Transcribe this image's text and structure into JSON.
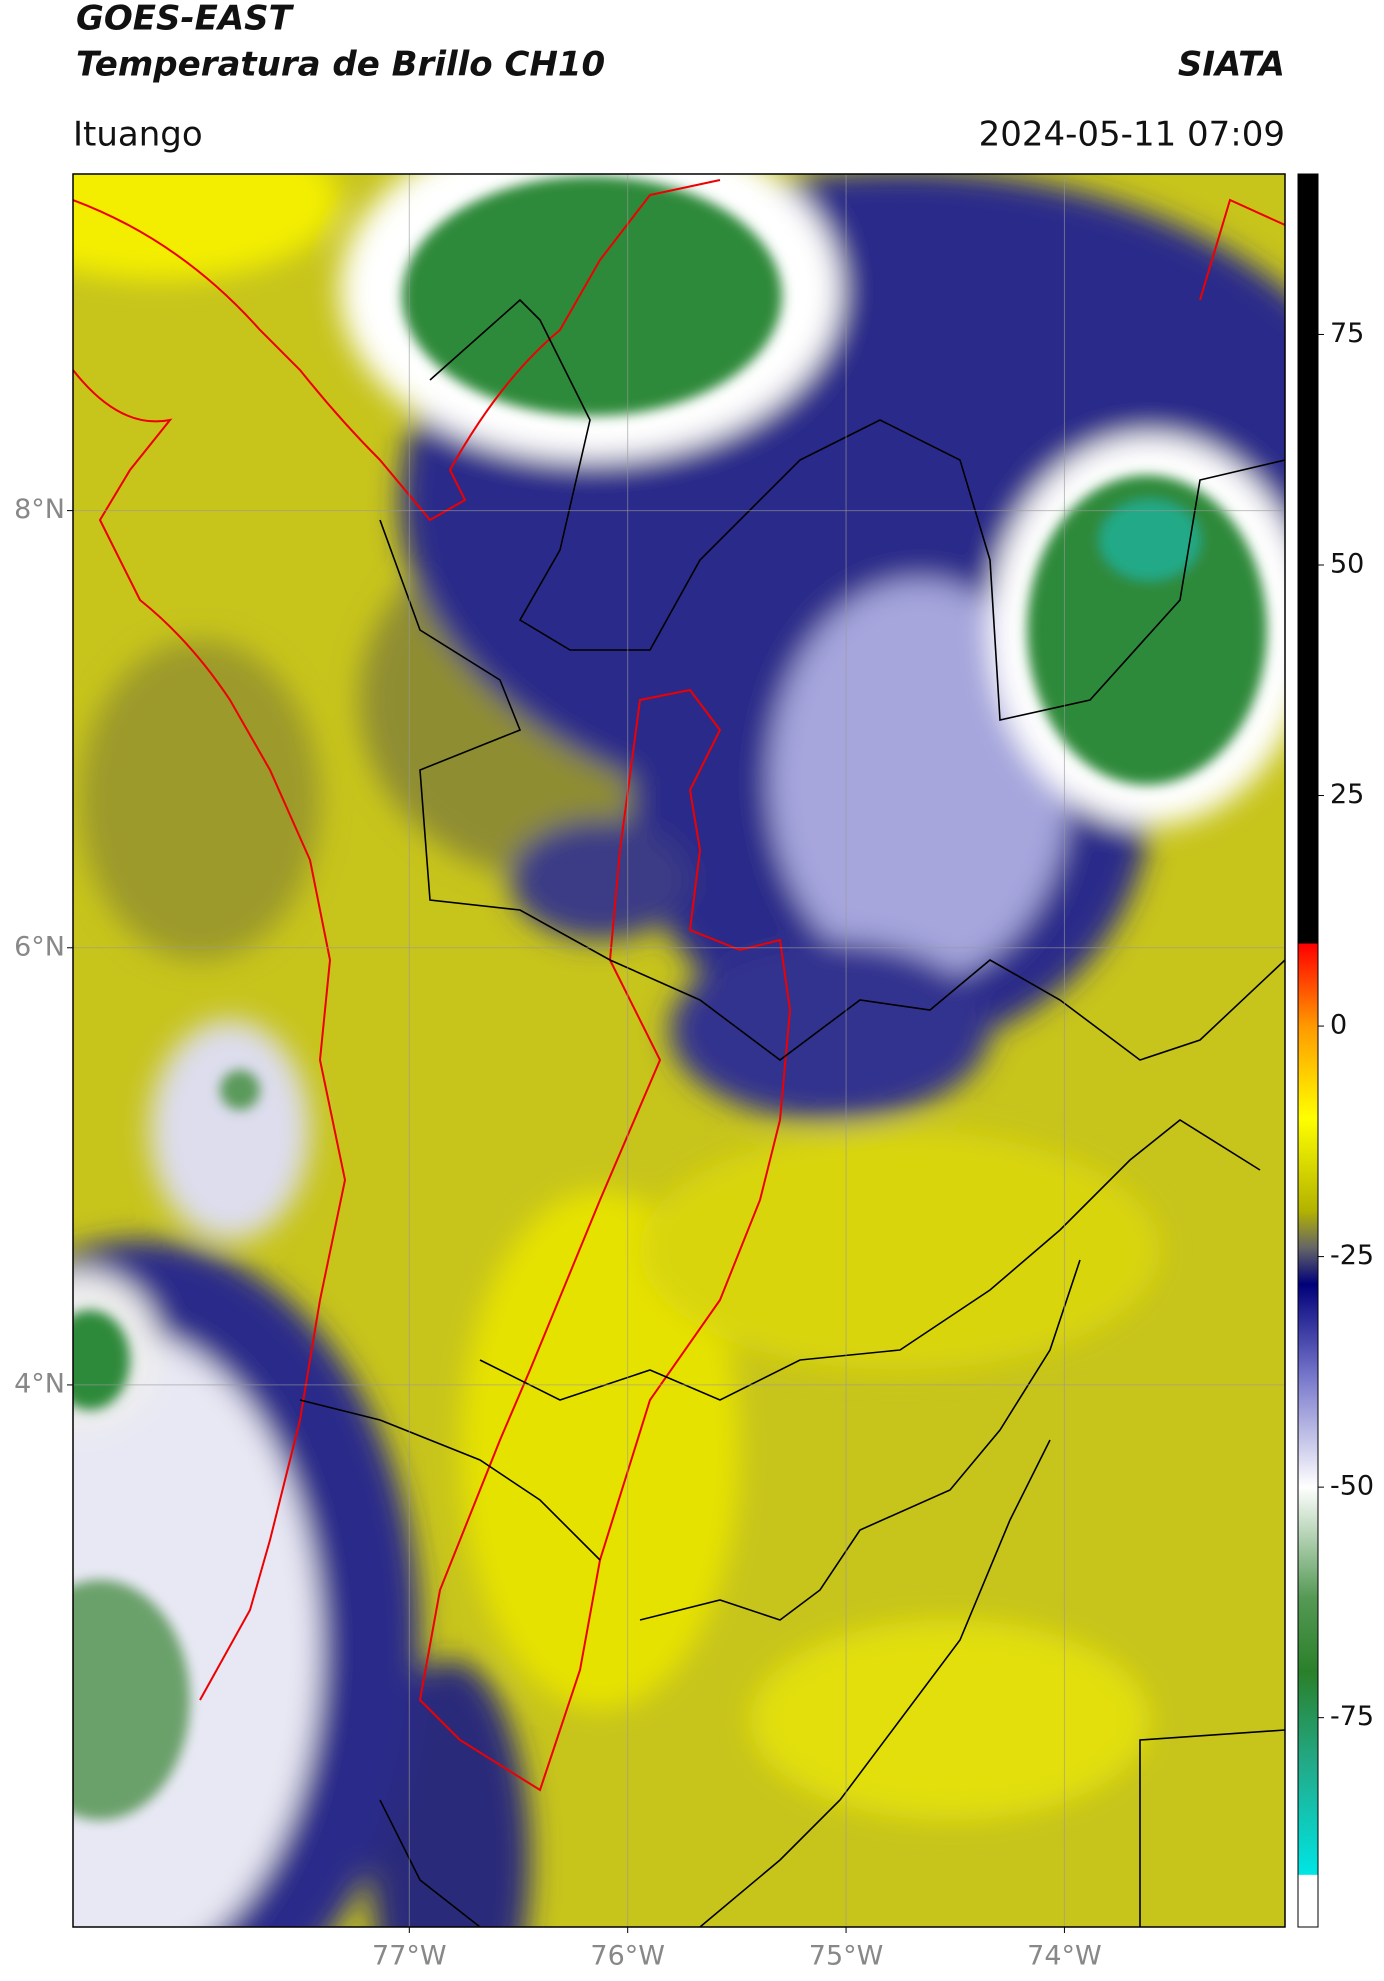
{
  "header": {
    "title": "GOES-EAST",
    "subtitle": "Temperatura de Brillo CH10",
    "source": "SIATA",
    "location": "Ituango",
    "datetime": "2024-05-11 07:09"
  },
  "chart_data": {
    "type": "map",
    "xlim": [
      -78.54,
      -72.99
    ],
    "ylim": [
      1.52,
      9.54
    ],
    "xticks": [
      {
        "value": -77,
        "label": "77°W"
      },
      {
        "value": -76,
        "label": "76°W"
      },
      {
        "value": -75,
        "label": "75°W"
      },
      {
        "value": -74,
        "label": "74°W"
      }
    ],
    "yticks": [
      {
        "value": 8,
        "label": "8°N"
      },
      {
        "value": 6,
        "label": "6°N"
      },
      {
        "value": 4,
        "label": "4°N"
      }
    ],
    "grid": true,
    "colorbar": {
      "lim": [
        -97.7,
        92.4
      ],
      "ticks": [
        75,
        50,
        25,
        0,
        -25,
        -50,
        -75
      ],
      "stops": [
        {
          "value": 92.4,
          "color": "#000000"
        },
        {
          "value": 9,
          "color": "#000000"
        },
        {
          "value": 8.9,
          "color": "#ff0000"
        },
        {
          "value": 0,
          "color": "#ff9900"
        },
        {
          "value": -10,
          "color": "#ffff00"
        },
        {
          "value": -20,
          "color": "#b3b300"
        },
        {
          "value": -24,
          "color": "#666666"
        },
        {
          "value": -28,
          "color": "#00007a"
        },
        {
          "value": -38,
          "color": "#7777cc"
        },
        {
          "value": -50,
          "color": "#ffffff"
        },
        {
          "value": -62,
          "color": "#559955"
        },
        {
          "value": -70,
          "color": "#2a802a"
        },
        {
          "value": -80,
          "color": "#22aa88"
        },
        {
          "value": -92,
          "color": "#00e5e5"
        },
        {
          "value": -92.1,
          "color": "#ffffff"
        },
        {
          "value": -97.7,
          "color": "#ffffff"
        }
      ]
    }
  }
}
